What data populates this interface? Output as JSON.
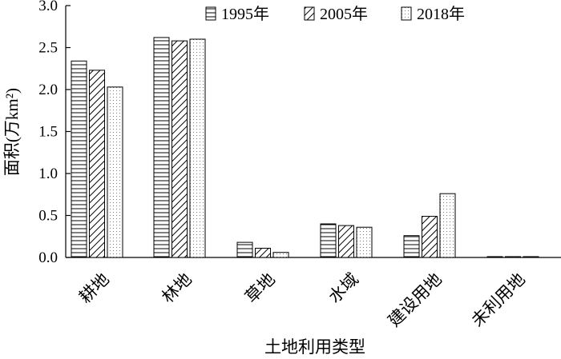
{
  "chart_data": {
    "type": "bar",
    "title": "",
    "xlabel": "土地利用类型",
    "ylabel": "面积(万km²)",
    "ylim": [
      0,
      3.0
    ],
    "yticks": [
      "0.0",
      "0.5",
      "1.0",
      "1.5",
      "2.0",
      "2.5",
      "3.0"
    ],
    "categories": [
      "耕地",
      "林地",
      "草地",
      "水域",
      "建设用地",
      "未利用地"
    ],
    "series": [
      {
        "name": "1995年",
        "pattern": "horizontal-lines",
        "values": [
          2.34,
          2.62,
          0.18,
          0.4,
          0.26,
          0.01
        ]
      },
      {
        "name": "2005年",
        "pattern": "diagonal-lines",
        "values": [
          2.23,
          2.58,
          0.11,
          0.38,
          0.49,
          0.01
        ]
      },
      {
        "name": "2018年",
        "pattern": "dots",
        "values": [
          2.03,
          2.6,
          0.06,
          0.36,
          0.76,
          0.01
        ]
      }
    ],
    "legend_position": "top-right",
    "grid": false
  }
}
